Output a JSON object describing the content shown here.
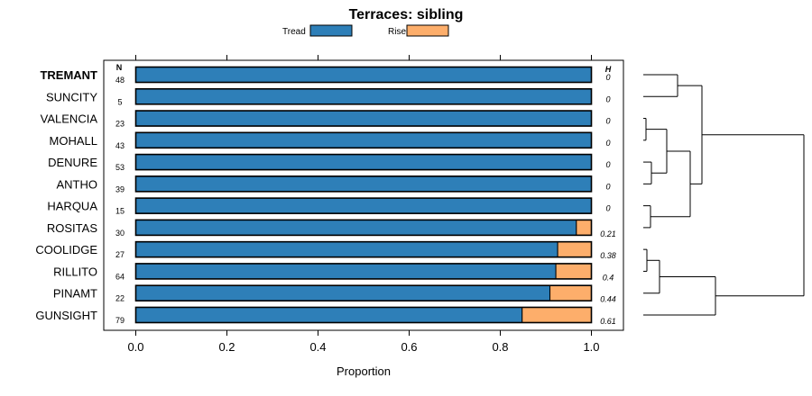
{
  "chart_data": {
    "type": "bar",
    "orientation": "horizontal",
    "stacked": true,
    "title": "Terraces: sibling",
    "xlabel": "Proportion",
    "ylabel": "",
    "xlim": [
      0,
      1
    ],
    "x_ticks": [
      "0.0",
      "0.2",
      "0.4",
      "0.6",
      "0.8",
      "1.0"
    ],
    "n_header": "N",
    "h_header": "H",
    "legend": {
      "position": "top",
      "entries": [
        "Tread",
        "Riser"
      ]
    },
    "series_colors": {
      "Tread": "#2e7fb8",
      "Riser": "#fdae6b"
    },
    "highlight_category": "TREMANT",
    "categories": [
      "TREMANT",
      "SUNCITY",
      "VALENCIA",
      "MOHALL",
      "DENURE",
      "ANTHO",
      "HARQUA",
      "ROSITAS",
      "COOLIDGE",
      "RILLITO",
      "PINAMT",
      "GUNSIGHT"
    ],
    "n": [
      "48",
      "5",
      "23",
      "43",
      "53",
      "39",
      "15",
      "30",
      "27",
      "64",
      "22",
      "79"
    ],
    "h": [
      "0",
      "0",
      "0",
      "0",
      "0",
      "0",
      "0",
      "0.21",
      "0.38",
      "0.4",
      "0.44",
      "0.61"
    ],
    "series": [
      {
        "name": "Tread",
        "values": [
          1.0,
          1.0,
          1.0,
          1.0,
          1.0,
          1.0,
          1.0,
          0.967,
          0.926,
          0.922,
          0.909,
          0.848
        ]
      },
      {
        "name": "Riser",
        "values": [
          0.0,
          0.0,
          0.0,
          0.0,
          0.0,
          0.0,
          0.0,
          0.033,
          0.074,
          0.078,
          0.091,
          0.152
        ]
      }
    ],
    "dendrogram": {
      "linkage_order": [
        "TREMANT",
        "SUNCITY",
        "VALENCIA",
        "MOHALL",
        "DENURE",
        "ANTHO",
        "HARQUA",
        "ROSITAS",
        "COOLIDGE",
        "RILLITO",
        "PINAMT",
        "GUNSIGHT"
      ]
    }
  }
}
